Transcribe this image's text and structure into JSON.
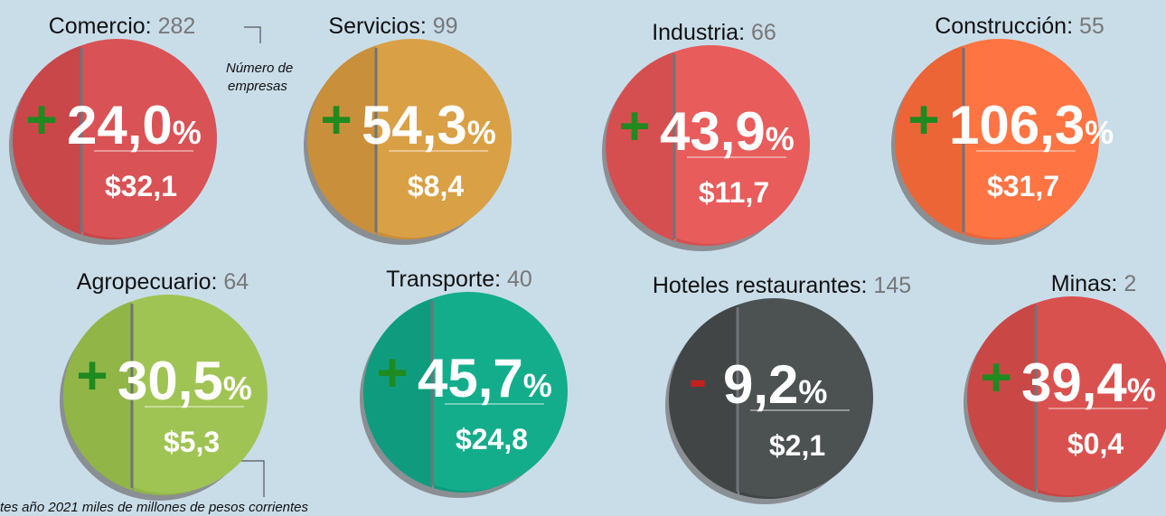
{
  "percent_sign": "%",
  "notes": {
    "companies": [
      "Número de",
      "empresas"
    ],
    "sales": "tes año 2021 miles de millones de pesos corrientes"
  },
  "sectors": [
    {
      "name": "Comercio:",
      "count": "282",
      "sign": "+",
      "growth": "24,0",
      "sales": "$32,1",
      "color": "#d95255",
      "dark": "#c94649"
    },
    {
      "name": "Servicios:",
      "count": "99",
      "sign": "+",
      "growth": "54,3",
      "sales": "$8,4",
      "color": "#d9a046",
      "dark": "#c98f3a"
    },
    {
      "name": "Industria:",
      "count": "66",
      "sign": "+",
      "growth": "43,9",
      "sales": "$11,7",
      "color": "#e85c5c",
      "dark": "#d64f50"
    },
    {
      "name": "Construcción:",
      "count": "55",
      "sign": "+",
      "growth": "106,3",
      "sales": "$31,7",
      "color": "#fe7443",
      "dark": "#ec6537"
    },
    {
      "name": "Agropecuario:",
      "count": "64",
      "sign": "+",
      "growth": "30,5",
      "sales": "$5,3",
      "color": "#a0c453",
      "dark": "#92b548"
    },
    {
      "name": "Transporte:",
      "count": "40",
      "sign": "+",
      "growth": "45,7",
      "sales": "$24,8",
      "color": "#14ad8c",
      "dark": "#0f9c7e"
    },
    {
      "name": "Hoteles restaurantes:",
      "count": "145",
      "sign": "-",
      "growth": "9,2",
      "sales": "$2,1",
      "color": "#4c5152",
      "dark": "#414546"
    },
    {
      "name": "Minas:",
      "count": "2",
      "sign": "+",
      "growth": "39,4",
      "sales": "$0,4",
      "color": "#d9514f",
      "dark": "#c94745"
    }
  ]
}
